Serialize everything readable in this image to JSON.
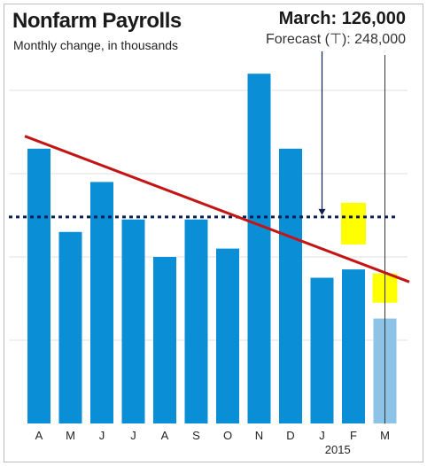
{
  "chart_data": {
    "type": "bar",
    "title": "Nonfarm Payrolls",
    "subtitle": "Monthly change, in thousands",
    "categories": [
      "A",
      "M",
      "J",
      "J",
      "A",
      "S",
      "O",
      "N",
      "D",
      "J",
      "F",
      "M"
    ],
    "year_label": "2015",
    "values": [
      330,
      230,
      290,
      245,
      200,
      245,
      210,
      420,
      330,
      175,
      185,
      126
    ],
    "ylim": [
      0,
      450
    ],
    "gridlines": [
      100,
      200,
      300,
      400
    ],
    "forecast_line": 248,
    "forecast_ranges": [
      {
        "category_index": 10,
        "low": 215,
        "high": 265
      },
      {
        "category_index": 11,
        "low": 145,
        "high": 180
      }
    ],
    "trend_line": {
      "start": 345,
      "end": 170
    },
    "colors": {
      "bar": "#0a8fd6",
      "bar_latest": "#8ec3e8",
      "trend": "#c31515",
      "forecast": "#0d1f4f",
      "range": "#ffff00",
      "grid": "#e2e2e2"
    },
    "annotation": {
      "main": "March: 126,000",
      "sub": "Forecast (⊤): 248,000"
    }
  }
}
